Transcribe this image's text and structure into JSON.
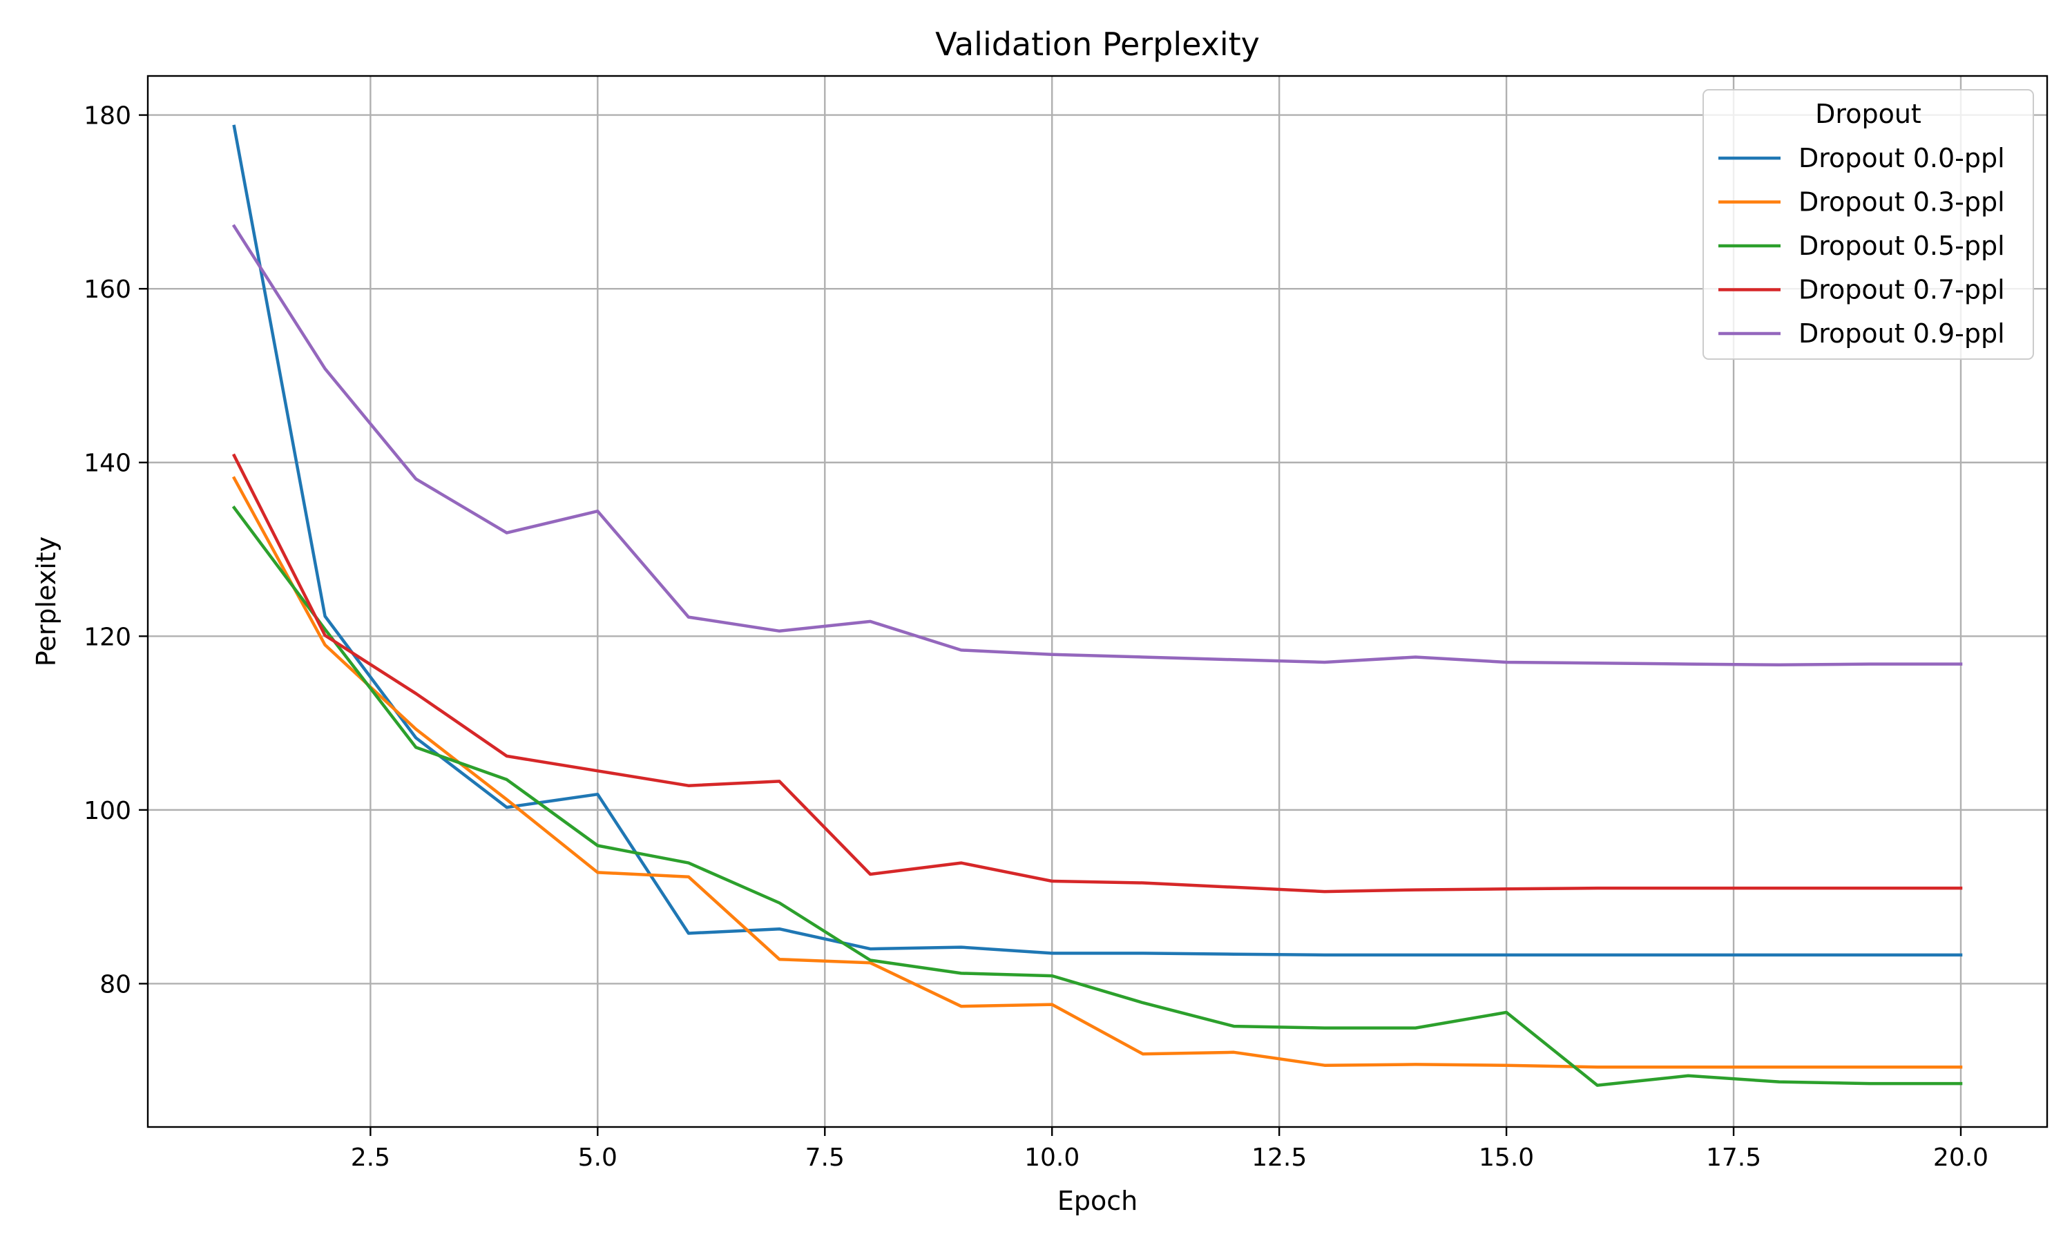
{
  "chart_data": {
    "type": "line",
    "title": "Validation Perplexity",
    "xlabel": "Epoch",
    "ylabel": "Perplexity",
    "x": [
      1,
      2,
      3,
      4,
      5,
      6,
      7,
      8,
      9,
      10,
      11,
      12,
      13,
      14,
      15,
      16,
      17,
      18,
      19,
      20
    ],
    "xlim": [
      0.05,
      20.95
    ],
    "ylim": [
      63.5,
      184.5
    ],
    "x_ticks": [
      2.5,
      5.0,
      7.5,
      10.0,
      12.5,
      15.0,
      17.5,
      20.0
    ],
    "x_tick_labels": [
      "2.5",
      "5.0",
      "7.5",
      "10.0",
      "12.5",
      "15.0",
      "17.5",
      "20.0"
    ],
    "y_ticks": [
      80,
      100,
      120,
      140,
      160,
      180
    ],
    "y_tick_labels": [
      "80",
      "100",
      "120",
      "140",
      "160",
      "180"
    ],
    "grid": true,
    "legend": {
      "title": "Dropout",
      "position": "top-right"
    },
    "series": [
      {
        "name": "Dropout 0.0-ppl",
        "color": "#1f77b4",
        "values": [
          178.7,
          122.3,
          108.3,
          100.3,
          101.8,
          85.8,
          86.3,
          84.0,
          84.2,
          83.5,
          83.5,
          83.4,
          83.3,
          83.3,
          83.3,
          83.3,
          83.3,
          83.3,
          83.3,
          83.3
        ]
      },
      {
        "name": "Dropout 0.3-ppl",
        "color": "#ff7f0e",
        "values": [
          138.2,
          119.0,
          109.3,
          101.2,
          92.8,
          92.3,
          82.8,
          82.4,
          77.4,
          77.6,
          71.9,
          72.1,
          70.6,
          70.7,
          70.6,
          70.4,
          70.4,
          70.4,
          70.4,
          70.4
        ]
      },
      {
        "name": "Dropout 0.5-ppl",
        "color": "#2ca02c",
        "values": [
          134.8,
          120.8,
          107.2,
          103.5,
          95.9,
          93.9,
          89.3,
          82.7,
          81.2,
          80.9,
          77.8,
          75.1,
          74.9,
          74.9,
          76.7,
          68.3,
          69.4,
          68.7,
          68.5,
          68.5
        ]
      },
      {
        "name": "Dropout 0.7-ppl",
        "color": "#d62728",
        "values": [
          140.8,
          120.1,
          113.4,
          106.2,
          104.5,
          102.8,
          103.3,
          92.6,
          93.9,
          91.8,
          91.6,
          91.1,
          90.6,
          90.8,
          90.9,
          91.0,
          91.0,
          91.0,
          91.0,
          91.0
        ]
      },
      {
        "name": "Dropout 0.9-ppl",
        "color": "#9467bd",
        "values": [
          167.2,
          150.8,
          138.1,
          131.9,
          134.4,
          122.2,
          120.6,
          121.7,
          118.4,
          117.9,
          117.6,
          117.3,
          117.0,
          117.6,
          117.0,
          116.9,
          116.8,
          116.7,
          116.8,
          116.8
        ]
      }
    ]
  }
}
